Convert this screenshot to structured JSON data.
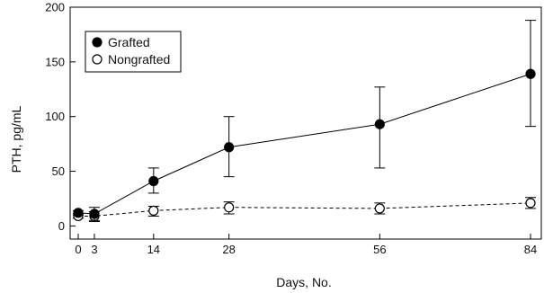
{
  "chart_data": {
    "type": "line",
    "xlabel": "Days, No.",
    "ylabel": "PTH, pg/mL",
    "x": [
      0,
      3,
      14,
      28,
      56,
      84
    ],
    "xticks": [
      0,
      3,
      14,
      28,
      56,
      84
    ],
    "yticks": [
      0,
      50,
      100,
      150,
      200
    ],
    "xlim": [
      -1.5,
      86
    ],
    "ylim": [
      -12,
      200
    ],
    "grid": false,
    "legend_position": "top-left",
    "series": [
      {
        "name": "Grafted",
        "marker": "filled-circle",
        "line": "solid",
        "color": "#000000",
        "values": [
          12,
          11,
          41,
          72,
          93,
          139
        ],
        "err_low": [
          10,
          5,
          30,
          45,
          53,
          91
        ],
        "err_high": [
          14,
          17,
          53,
          100,
          127,
          188
        ]
      },
      {
        "name": "Nongrafted",
        "marker": "open-circle",
        "line": "dashed",
        "color": "#000000",
        "values": [
          9,
          9,
          14,
          17,
          16,
          21
        ],
        "err_low": [
          7,
          4,
          9,
          11,
          11,
          16
        ],
        "err_high": [
          11,
          13,
          18,
          22,
          21,
          26
        ]
      }
    ]
  }
}
